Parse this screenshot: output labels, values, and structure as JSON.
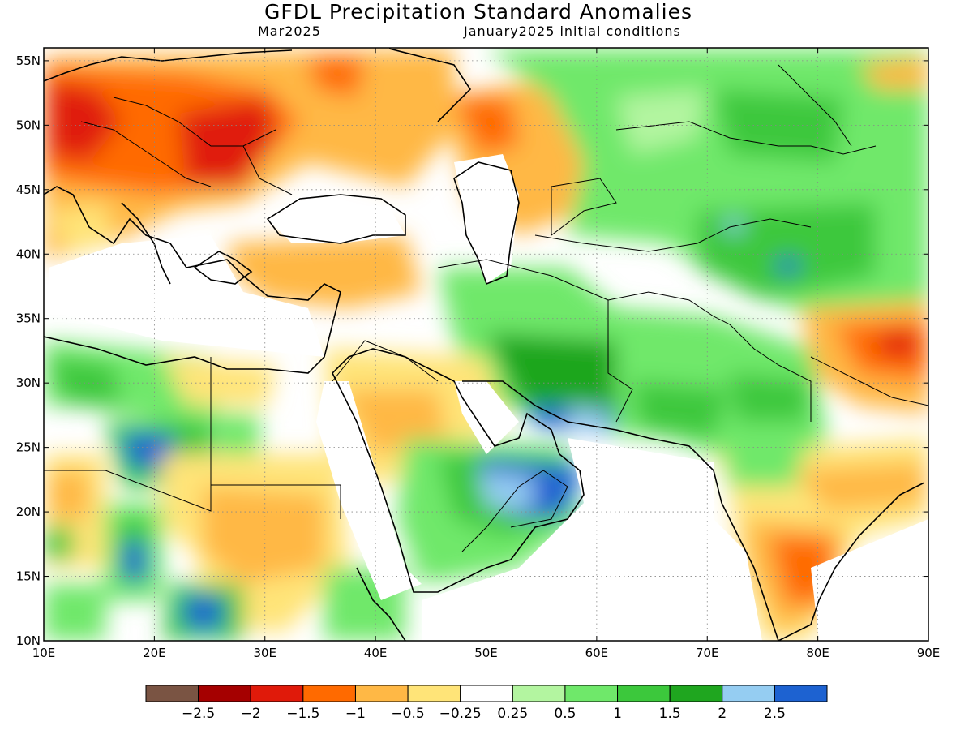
{
  "header": {
    "title": "GFDL Precipitation Standard Anomalies",
    "month": "Mar2025",
    "init": "January2025 initial conditions"
  },
  "map": {
    "lon_range": [
      10,
      90
    ],
    "lat_range": [
      10,
      56
    ],
    "lon_ticks": [
      {
        "value": 10,
        "label": "10E"
      },
      {
        "value": 20,
        "label": "20E"
      },
      {
        "value": 30,
        "label": "30E"
      },
      {
        "value": 40,
        "label": "40E"
      },
      {
        "value": 50,
        "label": "50E"
      },
      {
        "value": 60,
        "label": "60E"
      },
      {
        "value": 70,
        "label": "70E"
      },
      {
        "value": 80,
        "label": "80E"
      },
      {
        "value": 90,
        "label": "90E"
      }
    ],
    "lat_ticks": [
      {
        "value": 10,
        "label": "10N"
      },
      {
        "value": 15,
        "label": "15N"
      },
      {
        "value": 20,
        "label": "20N"
      },
      {
        "value": 25,
        "label": "25N"
      },
      {
        "value": 30,
        "label": "30N"
      },
      {
        "value": 35,
        "label": "35N"
      },
      {
        "value": 40,
        "label": "40N"
      },
      {
        "value": 45,
        "label": "45N"
      },
      {
        "value": 50,
        "label": "50N"
      },
      {
        "value": 55,
        "label": "55N"
      }
    ],
    "gridlines": "dotted"
  },
  "colorbar": {
    "colors": [
      "#7a5443",
      "#a50000",
      "#e01a0a",
      "#ff6a00",
      "#ffb845",
      "#ffe478",
      "#ffffff",
      "#b3f5a0",
      "#6fe86a",
      "#3cc83c",
      "#1fa61f",
      "#95cdf2",
      "#1d62d1"
    ],
    "labels": [
      "−2.5",
      "−2",
      "−1.5",
      "−1",
      "−0.5",
      "−0.25",
      "0.25",
      "0.5",
      "1",
      "1.5",
      "2",
      "2.5"
    ]
  },
  "anomaly_regions": [
    {
      "name": "central-europe",
      "level": -1.5,
      "lon": 20,
      "lat": 49.5
    },
    {
      "name": "western-europe",
      "level": -2,
      "lon": 13,
      "lat": 51
    },
    {
      "name": "ukraine",
      "level": -1,
      "lon": 32,
      "lat": 52
    },
    {
      "name": "north-caspian",
      "level": -1,
      "lon": 54,
      "lat": 49
    },
    {
      "name": "russia-north",
      "level": 1,
      "lon": 70,
      "lat": 53
    },
    {
      "name": "kazakhstan",
      "level": 1,
      "lon": 76,
      "lat": 48
    },
    {
      "name": "central-asia",
      "level": 1.5,
      "lon": 76,
      "lat": 41
    },
    {
      "name": "iran",
      "level": 1.5,
      "lon": 58,
      "lat": 31
    },
    {
      "name": "oman-coast",
      "level": 2.5,
      "lon": 53,
      "lat": 22
    },
    {
      "name": "himalaya",
      "level": -1,
      "lon": 85,
      "lat": 32
    },
    {
      "name": "india-south",
      "level": -1,
      "lon": 78,
      "lat": 16
    },
    {
      "name": "sahara-north",
      "level": 1,
      "lon": 16,
      "lat": 29
    },
    {
      "name": "sudan",
      "level": -0.5,
      "lon": 30,
      "lat": 19
    },
    {
      "name": "saudi",
      "level": -0.5,
      "lon": 44,
      "lat": 27
    },
    {
      "name": "anatolia",
      "level": -0.5,
      "lon": 36,
      "lat": 39
    }
  ]
}
